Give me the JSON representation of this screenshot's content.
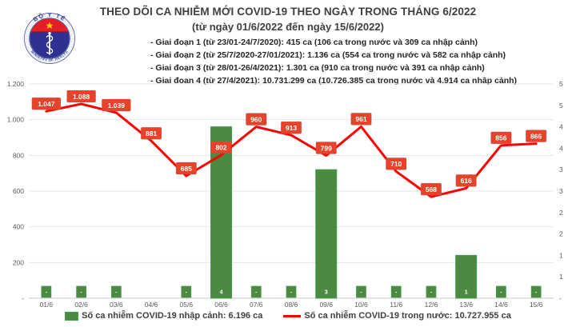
{
  "header": {
    "title": "THEO DÕI CA NHIỄM MỚI COVID-19 THEO NGÀY TRONG THÁNG 6/2022",
    "subtitle": "(từ ngày 01/6/2022 đến ngày 15/6/2022)",
    "bullets": [
      "- Giai đoạn 1 (từ 23/01-24/7/2020): 415 ca (106 ca trong nước và 309 ca nhập cảnh)",
      "- Giai đoạn 2 (từ 25/7/2020-27/01/2021): 1.136 ca (554 ca trong nước và 582 ca nhập cảnh)",
      "- Giai đoạn 3 (từ 28/01-26/4/2021): 1.301 ca (910 ca trong nước và 391 ca nhập cảnh)",
      "- Giai đoạn 4 (từ 27/4/2021): 10.731.299 ca (10.726.385 ca trong nước và 4.914 ca nhập cảnh)"
    ],
    "logo": {
      "top_text": "BỘ Y TẾ",
      "bottom_text": "MINISTRY OF HEALTH"
    }
  },
  "chart_data": {
    "type": "combo",
    "categories": [
      "01/6",
      "02/6",
      "03/6",
      "04/6",
      "05/6",
      "06/6",
      "07/6",
      "08/6",
      "09/6",
      "10/6",
      "11/6",
      "12/6",
      "13/6",
      "14/6",
      "15/6"
    ],
    "series": [
      {
        "name": "Số ca nhiễm COVID-19 nhập cảnh",
        "type": "bar",
        "axis": "right",
        "color": "#4d8a41",
        "border_color": "#3f9e4d",
        "values": [
          0,
          0,
          0,
          null,
          0,
          4,
          0,
          0,
          3,
          0,
          0,
          0,
          1,
          0,
          0
        ],
        "labels": [
          "-",
          "-",
          "-",
          "",
          "-",
          "4",
          "-",
          "-",
          "3",
          "-",
          "-",
          "-",
          "1",
          "-",
          "-"
        ]
      },
      {
        "name": "Số ca nhiễm COVID-19 trong nước",
        "type": "line",
        "axis": "left",
        "color": "#fe0000",
        "label_bg": "#e8432a",
        "values": [
          1047,
          1088,
          1039,
          881,
          685,
          802,
          960,
          913,
          799,
          961,
          710,
          568,
          616,
          856,
          866
        ],
        "labels": [
          "1.047",
          "1.088",
          "1.039",
          "881",
          "685",
          "802",
          "960",
          "913",
          "799",
          "961",
          "710",
          "568",
          "616",
          "856",
          "866"
        ]
      }
    ],
    "left_axis": {
      "min": 0,
      "max": 1200,
      "step": 200,
      "tick_labels": [
        "-",
        "200",
        "400",
        "600",
        "800",
        "1.000",
        "1.200"
      ]
    },
    "right_axis": {
      "min": 0,
      "max": 5,
      "step": 0.5,
      "tick_labels": [
        "-",
        "1",
        "1",
        "2",
        "2",
        "3",
        "3",
        "4",
        "4",
        "5",
        "5"
      ]
    },
    "grid": true,
    "legend_position": "bottom"
  },
  "legend": {
    "bar_label": "Số ca nhiễm COVID-19 nhập cảnh: 6.196 ca",
    "line_label": "Số ca nhiễm COVID-19 trong nước: 10.727.955 ca"
  },
  "colors": {
    "accent_red": "#fe0000",
    "label_box_red": "#e8432a",
    "bar_green": "#4d8a41",
    "grid": "#e4e4e4",
    "axis_text": "#595959",
    "title_text": "#3f3f3f",
    "logo_navy": "#2b3990",
    "logo_red": "#e31e24",
    "logo_blue": "#2e3192",
    "logo_star": "#ffcc00"
  }
}
